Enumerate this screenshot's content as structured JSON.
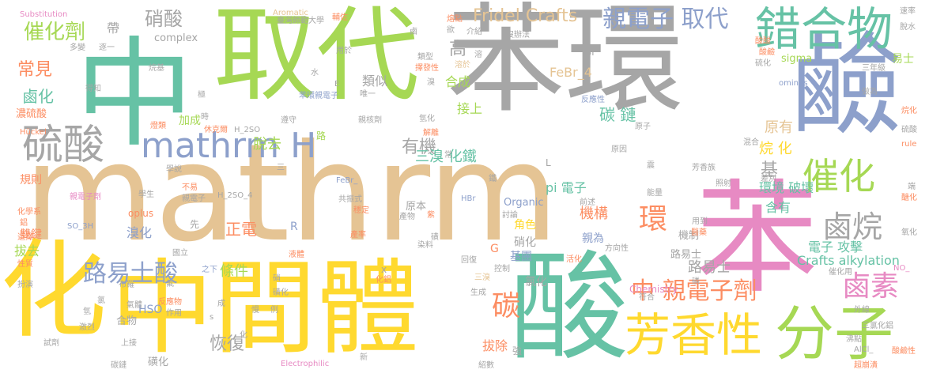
{
  "colors": {
    "gray": "#a6a6a6",
    "teal": "#66c2a5",
    "green": "#a6d854",
    "tan": "#e5c494",
    "pink": "#e78ac3",
    "blue": "#8da0cb",
    "orange": "#fc8d62",
    "yellow": "#ffd92f"
  },
  "words": {
    "w01": "苯環",
    "w02": "中",
    "w03": "取代",
    "w04": "mathrm",
    "w05": "鹼",
    "w06": "苯",
    "w07": "酸",
    "w08": "化",
    "w09": "中間體",
    "w10": "分子",
    "w11": "錯合物",
    "w12": "芳香性",
    "w13": "硫酸",
    "w14": "mathrm H",
    "w15": "催化",
    "w16": "鹵烷",
    "w17": "親電子 取代",
    "w18": "催化劑",
    "w19": "路易士酸",
    "w20": "中 親電子劑",
    "w21": "鹵素",
    "w22": "碳",
    "w23": "Fridel Crafts",
    "w24": "硝酸",
    "w25": "有機",
    "w26": "環",
    "w27": "常見",
    "w28": "鹵化",
    "w29": "Crafts alkylation",
    "w30": "恢復",
    "w31": "基",
    "w32": "路易士",
    "w33": "正電",
    "w34": "條件",
    "w35": "三溴 化鐵",
    "w36": "類似",
    "w37": "高",
    "w38": "接上",
    "w39": "合成",
    "w40": "碳 鏈",
    "w41": "烷 化",
    "w42": "原有",
    "w43": "環境 破壞",
    "w44": "含有",
    "w45": "電子 攻擊",
    "w46": "pi 電子",
    "w47": "FeBr_4",
    "w48": "脫去",
    "w49": "加成",
    "w50": "機構",
    "w51": "溴化",
    "w52": "拔去",
    "w53": "拔除",
    "w54": "角色",
    "w55": "硝化",
    "w56": "基團",
    "w57": "雙鍵",
    "w58": "濃硫酸",
    "w59": "親為",
    "w60": "氯化",
    "w61": "原本",
    "w62": "Organic",
    "w63": "機制",
    "w64": "HSO",
    "w65": "合物",
    "w66": "磺化",
    "w67": "路易士",
    "w68": "sigma",
    "w69": "complex",
    "w70": "帶",
    "w71": "Substitution",
    "w72": "Aromatic",
    "w73": "Electrophilic",
    "w74": "Chemistry",
    "w75": "oplus",
    "w76": "H_2SO_4",
    "w77": "H_2SO",
    "w78": "SO_3H",
    "w79": "FeBr_",
    "w80": "AlCl_",
    "w81": "HBr",
    "w82": "Hückel",
    "w83": "rule",
    "w84": "ominus",
    "w85": "NO_",
    "w86": "R",
    "w87": "G",
    "w88": "Br",
    "w89": "E",
    "w90": "L",
    "w91": "x",
    "w92": "s",
    "w93": "臺灣師範大學",
    "w94": "易士",
    "w95": "速率",
    "w96": "脫水",
    "w97": "三年級",
    "w98": "做為",
    "w99": "烷化",
    "w100": "多變",
    "w101": "逐一",
    "w102": "烷基",
    "w103": "得知",
    "w104": "用於",
    "w105": "介紹",
    "w106": "沒辦法",
    "w107": "類型",
    "w108": "溶於",
    "w109": "擇發性",
    "w110": "唯一",
    "w111": "苯環親電子",
    "w112": "反應性",
    "w113": "親核劑",
    "w114": "氫化",
    "w115": "解離",
    "w116": "燈類",
    "w117": "休克爾",
    "w118": "遵守",
    "w119": "學說",
    "w120": "規則",
    "w121": "親電子劑",
    "w122": "不易",
    "w123": "親電子",
    "w124": "學生",
    "w125": "共振式",
    "w126": "穩定",
    "w127": "產物",
    "w128": "討論",
    "w129": "產率",
    "w130": "染料",
    "w131": "回復",
    "w132": "控制",
    "w133": "活化",
    "w134": "方向性",
    "w135": "符合",
    "w136": "之下",
    "w137": "布羅",
    "w138": "液體",
    "w139": "國立",
    "w140": "化鋁",
    "w141": "三溴",
    "w142": "生成",
    "w143": "反應物",
    "w144": "作用",
    "w145": "氣體",
    "w146": "激烈",
    "w147": "試劑",
    "w148": "上接",
    "w149": "超崩潰",
    "w150": "酸鹼性",
    "w151": "沸點",
    "w152": "外線",
    "w153": "三氯化鋁",
    "w154": "化學系",
    "w155": "性質",
    "w156": "扮演",
    "w157": "選擇",
    "w158": "酸鹼",
    "w159": "醫藥",
    "w160": "用到",
    "w161": "差別",
    "w162": "照射",
    "w163": "能量",
    "w164": "芳香族",
    "w165": "原子",
    "w166": "混合",
    "w167": "原因",
    "w168": "前述",
    "w169": "硫化",
    "w170": "碳鏈",
    "w171": "強",
    "w172": "紫",
    "w173": "新",
    "w174": "慢",
    "w175": "例",
    "w176": "成",
    "w177": "鋁",
    "w178": "水",
    "w179": "溴",
    "w180": "鐵",
    "w181": "磺",
    "w182": "端",
    "w183": "極",
    "w184": "時",
    "w185": "路",
    "w186": "常",
    "w187": "三",
    "w188": "先",
    "w189": "溶",
    "w190": "欲",
    "w191": "熔點",
    "w192": "輔佐",
    "w193": "磺化",
    "w194": "酸酸",
    "w195": "催化用",
    "w196": "醣化",
    "w197": "氧化",
    "w198": "鹵",
    "w199": "氯",
    "w200": "化",
    "w201": "震",
    "w202": "紹數",
    "w203": "磷",
    "w204": "硝",
    "w205": "氟",
    "w206": "氫",
    "w207": "硫酸"
  }
}
